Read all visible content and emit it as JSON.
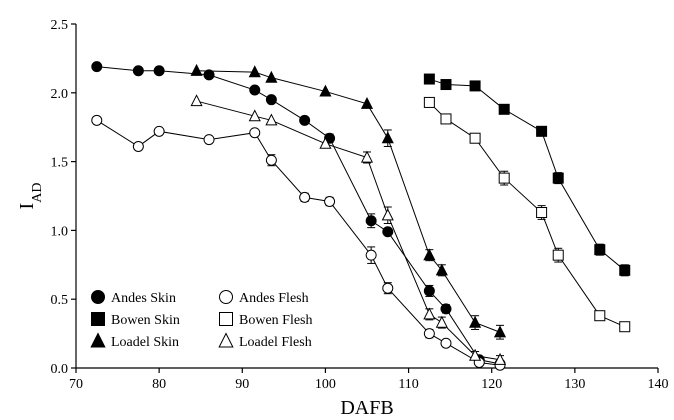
{
  "chart_data": {
    "type": "scatter",
    "xlabel": "DAFB",
    "ylabel": "I",
    "ylabel_sub": "AD",
    "xlim": [
      70,
      140
    ],
    "ylim": [
      0,
      2.5
    ],
    "xticks": [
      70,
      80,
      90,
      100,
      110,
      120,
      130,
      140
    ],
    "yticks": [
      0.0,
      0.5,
      1.0,
      1.5,
      2.0,
      2.5
    ],
    "ytick_labels": [
      "0.0",
      "0.5",
      "1.0",
      "1.5",
      "2.0",
      "2.5"
    ],
    "grid": false,
    "legend_position": "bottom-left",
    "series": [
      {
        "name": "Andes Skin",
        "marker": "circle",
        "fill": "#000000",
        "x": [
          72.5,
          77.5,
          80,
          86,
          91.5,
          93.5,
          97.5,
          100.5,
          105.5,
          107.5,
          112.5,
          114.5,
          118.5,
          121
        ],
        "y": [
          2.19,
          2.16,
          2.16,
          2.13,
          2.02,
          1.95,
          1.8,
          1.67,
          1.07,
          0.99,
          0.56,
          0.43,
          0.06,
          0.03
        ],
        "err": [
          0,
          0,
          0,
          0,
          0,
          0,
          0,
          0.03,
          0.05,
          0,
          0.04,
          0.03,
          0,
          0
        ]
      },
      {
        "name": "Bowen Skin",
        "marker": "square",
        "fill": "#000000",
        "x": [
          112.5,
          114.5,
          118,
          121.5,
          126,
          128,
          133,
          136
        ],
        "y": [
          2.1,
          2.06,
          2.05,
          1.88,
          1.72,
          1.38,
          0.86,
          0.71
        ],
        "err": [
          0,
          0,
          0,
          0,
          0,
          0.04,
          0.04,
          0.04
        ]
      },
      {
        "name": "Loadel Skin",
        "marker": "triangle",
        "fill": "#000000",
        "x": [
          84.5,
          91.5,
          93.5,
          100,
          105,
          107.5,
          112.5,
          114,
          118,
          121
        ],
        "y": [
          2.16,
          2.15,
          2.11,
          2.01,
          1.92,
          1.67,
          0.82,
          0.71,
          0.33,
          0.26
        ],
        "err": [
          0,
          0,
          0,
          0,
          0,
          0.06,
          0.04,
          0.04,
          0.05,
          0.05
        ]
      },
      {
        "name": "Andes Flesh",
        "marker": "circle",
        "fill": "#ffffff",
        "x": [
          72.5,
          77.5,
          80,
          86,
          91.5,
          93.5,
          97.5,
          100.5,
          105.5,
          107.5,
          112.5,
          114.5,
          118.5,
          121
        ],
        "y": [
          1.8,
          1.61,
          1.72,
          1.66,
          1.71,
          1.51,
          1.24,
          1.21,
          0.82,
          0.58,
          0.25,
          0.18,
          0.04,
          0.02
        ],
        "err": [
          0,
          0,
          0,
          0,
          0,
          0.04,
          0.03,
          0.03,
          0.06,
          0.04,
          0.03,
          0,
          0,
          0
        ]
      },
      {
        "name": "Bowen Flesh",
        "marker": "square",
        "fill": "#ffffff",
        "x": [
          112.5,
          114.5,
          118,
          121.5,
          126,
          128,
          133,
          136
        ],
        "y": [
          1.93,
          1.81,
          1.67,
          1.38,
          1.13,
          0.82,
          0.38,
          0.3
        ],
        "err": [
          0,
          0,
          0,
          0.05,
          0.05,
          0.05,
          0,
          0
        ]
      },
      {
        "name": "Loadel Flesh",
        "marker": "triangle",
        "fill": "#ffffff",
        "x": [
          84.5,
          91.5,
          93.5,
          100,
          105,
          107.5,
          112.5,
          114,
          118,
          121
        ],
        "y": [
          1.94,
          1.83,
          1.8,
          1.63,
          1.53,
          1.11,
          0.39,
          0.33,
          0.09,
          0.06
        ],
        "err": [
          0,
          0,
          0,
          0,
          0.04,
          0.06,
          0.04,
          0.04,
          0.03,
          0.03
        ]
      }
    ],
    "legend": {
      "columns": [
        [
          "Andes Skin",
          "Bowen Skin",
          "Loadel Skin"
        ],
        [
          "Andes Flesh",
          "Bowen Flesh",
          "Loadel Flesh"
        ]
      ]
    }
  }
}
